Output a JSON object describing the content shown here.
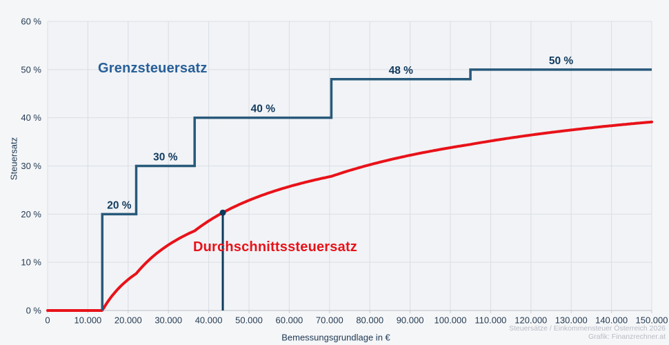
{
  "colors": {
    "background": "#f5f6f8",
    "plot_background": "#f1f3f6",
    "grid": "#dadee3",
    "axis": "#c5cad0",
    "tick_text": "#243b52",
    "marginal_line": "#28597a",
    "marginal_step_label": "#113a5e",
    "marginal_series_label": "#275f98",
    "average_line": "#e81219",
    "marker": "#0d3a5c",
    "watermark": "#b7bbc3"
  },
  "labels": {
    "grenzsteuersatz": "Grenzsteuersatz",
    "durchschnittssteuersatz": "Durchschnittssteuersatz"
  },
  "watermark": {
    "line1": "Steuersätze / Einkommensteuer Österreich 2026",
    "line2": "Grafik: Finanzrechner.at"
  },
  "chart_data": {
    "type": "line",
    "title": "Steuersätze / Einkommensteuer Österreich 2026",
    "grid": true,
    "x_axis": {
      "label": "Bemessungsgrundlage in €",
      "min": 0,
      "max": 150000,
      "tick_values": [
        0,
        10000,
        20000,
        30000,
        40000,
        50000,
        60000,
        70000,
        80000,
        90000,
        100000,
        110000,
        120000,
        130000,
        140000,
        150000
      ],
      "tick_labels": [
        "0",
        "10.000",
        "20.000",
        "30.000",
        "40.000",
        "50.000",
        "60.000",
        "70.000",
        "80.000",
        "90.000",
        "100.000",
        "110.000",
        "120.000",
        "130.000",
        "140.000",
        "150.000"
      ]
    },
    "y_axis": {
      "label": "Steuersatz",
      "min": 0,
      "max": 60,
      "tick_values": [
        0,
        10,
        20,
        30,
        40,
        50,
        60
      ],
      "tick_labels": [
        "0 %",
        "10 %",
        "20 %",
        "30 %",
        "40 %",
        "50 %",
        "60 %"
      ]
    },
    "series": [
      {
        "name": "Grenzsteuersatz",
        "type": "step",
        "color": "#28597a",
        "brackets": [
          {
            "from": 0,
            "to": 13577,
            "rate": 0,
            "label": ""
          },
          {
            "from": 13577,
            "to": 22005,
            "rate": 20,
            "label": "20 %"
          },
          {
            "from": 22005,
            "to": 36507,
            "rate": 30,
            "label": "30 %"
          },
          {
            "from": 36507,
            "to": 70452,
            "rate": 40,
            "label": "40 %"
          },
          {
            "from": 70452,
            "to": 104978,
            "rate": 48,
            "label": "48 %"
          },
          {
            "from": 104978,
            "to": 150000,
            "rate": 50,
            "label": "50 %"
          }
        ]
      },
      {
        "name": "Durchschnittssteuersatz",
        "type": "line",
        "color": "#e81219",
        "points": [
          [
            0,
            0
          ],
          [
            13577,
            0
          ],
          [
            20000,
            6.4
          ],
          [
            30000,
            13.6
          ],
          [
            40000,
            18.6
          ],
          [
            50000,
            22.9
          ],
          [
            60000,
            25.7
          ],
          [
            70000,
            27.8
          ],
          [
            80000,
            30.2
          ],
          [
            90000,
            32.2
          ],
          [
            100000,
            33.8
          ],
          [
            110000,
            35.2
          ],
          [
            120000,
            36.4
          ],
          [
            130000,
            37.5
          ],
          [
            140000,
            38.4
          ],
          [
            150000,
            39.1
          ]
        ]
      }
    ],
    "marker": {
      "x": 43500,
      "y": 20.3
    }
  }
}
